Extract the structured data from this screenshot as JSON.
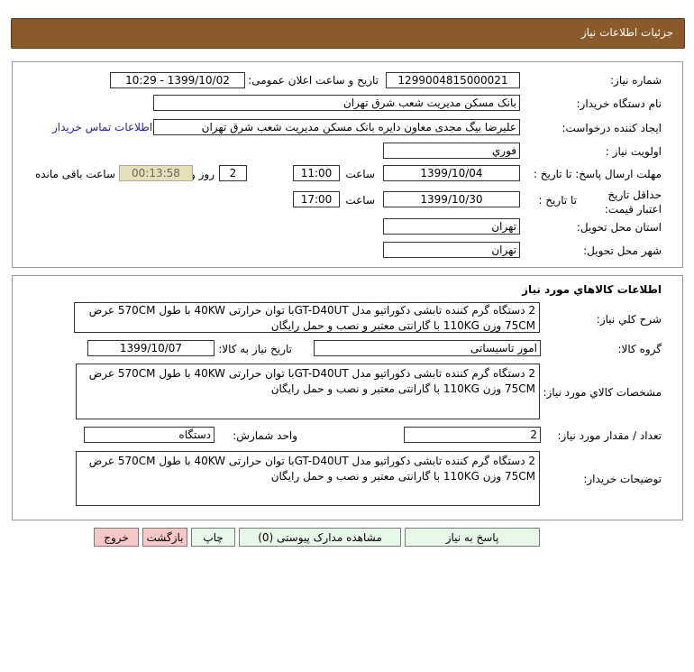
{
  "header": {
    "title": "جزئیات اطلاعات نیاز"
  },
  "info": {
    "need_number_label": "شماره نیاز:",
    "need_number": "1299004815000021",
    "announce_label": "تاریخ و ساعت اعلان عمومی:",
    "announce_value": "1399/10/02 - 10:29",
    "buyer_label": "نام دستگاه خریدار:",
    "buyer": "بانک مسکن مدیریت شعب شرق تهران",
    "creator_label": "ایجاد کننده درخواست:",
    "creator": "علیرضا بیگ مجدی معاون دایره بانک مسکن مدیریت شعب شرق تهران",
    "contact_link": "اطلاعات تماس خریدار",
    "priority_label": "اولویت نیاز :",
    "priority": "فوري",
    "deadline_label": "مهلت ارسال پاسخ: تا تاریخ :",
    "deadline_date": "1399/10/04",
    "time_label": "ساعت",
    "deadline_time": "11:00",
    "days": "2",
    "days_label": "روز و",
    "remaining": "00:13:58",
    "remaining_label": "ساعت باقی مانده",
    "validity_label": "حداقل تاریخ اعتبار قیمت:",
    "validity_to_label": "تا تاریخ :",
    "validity_date": "1399/10/30",
    "validity_time": "17:00",
    "province_label": "استان محل تحویل:",
    "province": "تهران",
    "city_label": "شهر محل تحویل:",
    "city": "تهران"
  },
  "goods": {
    "title": "اطلاعات کالاهاي مورد نياز",
    "summary_label": "شرح کلي نياز:",
    "summary": "2 دستگاه گرم کننده تابشی دکوراتیو مدل GT-D40UTبا توان حرارتی 40KW با طول 570CM عرض 75CM وزن 110KG  با گارانتی معتبر و نصب و حمل رایگان",
    "group_label": "گروه کالا:",
    "group": "امور تاسیساتی",
    "need_date_label": "تاریخ نياز به کالا:",
    "need_date": "1399/10/07",
    "specs_label": "مشخصات کالاي مورد نياز:",
    "specs": "2 دستگاه گرم کننده تابشی دکوراتیو مدل GT-D40UTبا توان حرارتی 40KW با طول 570CM عرض 75CM وزن 110KG  با گارانتی معتبر و نصب و حمل رایگان",
    "qty_label": "تعداد / مقدار مورد نياز:",
    "qty": "2",
    "unit_label": "واحد شمارش:",
    "unit": "دستگاه",
    "desc_label": "توضیحات خریدار:",
    "desc": "2 دستگاه گرم کننده تابشی دکوراتیو مدل GT-D40UTبا توان حرارتی 40KW با طول 570CM عرض 75CM وزن 110KG  با گارانتی معتبر و نصب و حمل رایگان"
  },
  "buttons": {
    "reply": "پاسخ به نیاز",
    "attachments": "مشاهده مدارک پیوستی (0)",
    "print": "چاپ",
    "back": "بازگشت",
    "exit": "خروج"
  }
}
